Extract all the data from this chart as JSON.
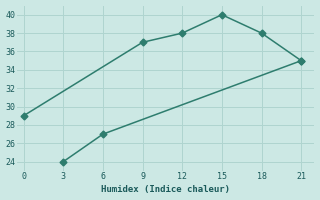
{
  "line1_x": [
    0,
    9,
    12,
    15,
    18,
    21
  ],
  "line1_y": [
    29,
    37,
    38,
    40,
    38,
    35
  ],
  "line2_x": [
    3,
    6,
    21
  ],
  "line2_y": [
    24,
    27,
    35
  ],
  "color": "#2e7d6e",
  "xlabel": "Humidex (Indice chaleur)",
  "xlim": [
    -0.5,
    22
  ],
  "ylim": [
    23,
    41
  ],
  "xticks": [
    0,
    3,
    6,
    9,
    12,
    15,
    18,
    21
  ],
  "yticks": [
    24,
    26,
    28,
    30,
    32,
    34,
    36,
    38,
    40
  ],
  "bg_color": "#cce8e4",
  "grid_color": "#afd4cf",
  "font_color": "#1a5a5a",
  "marker": "D",
  "markersize": 3.5,
  "linewidth": 1.1
}
